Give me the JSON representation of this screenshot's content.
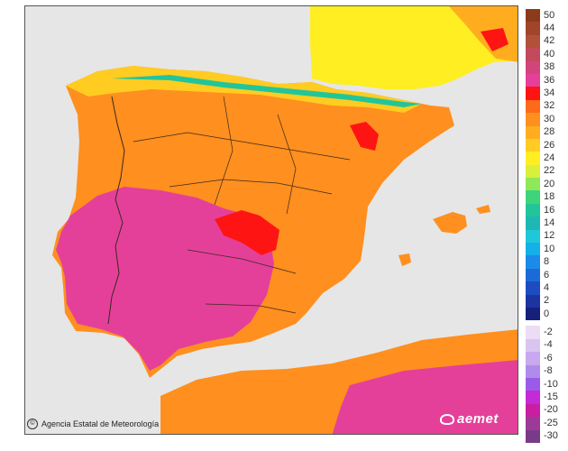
{
  "credit": {
    "text": "Agencia Estatal de Meteorología",
    "icon": "copyright-icon"
  },
  "brand": {
    "text": "aemet",
    "icon": "aemet-logo-icon"
  },
  "legend": {
    "positive": [
      {
        "label": "50",
        "color": "#8b3a1a"
      },
      {
        "label": "44",
        "color": "#a0452a"
      },
      {
        "label": "42",
        "color": "#b3503c"
      },
      {
        "label": "40",
        "color": "#c24a5c"
      },
      {
        "label": "38",
        "color": "#d2457a"
      },
      {
        "label": "36",
        "color": "#e4409a"
      },
      {
        "label": "34",
        "color": "#ff1414"
      },
      {
        "label": "32",
        "color": "#ff6a1a"
      },
      {
        "label": "30",
        "color": "#ff8f1f"
      },
      {
        "label": "28",
        "color": "#ffad1f"
      },
      {
        "label": "26",
        "color": "#ffcc22"
      },
      {
        "label": "24",
        "color": "#ffee22"
      },
      {
        "label": "22",
        "color": "#d8f03a"
      },
      {
        "label": "20",
        "color": "#8ee85a"
      },
      {
        "label": "18",
        "color": "#3ed47a"
      },
      {
        "label": "16",
        "color": "#22c59a"
      },
      {
        "label": "14",
        "color": "#1fb7b4"
      },
      {
        "label": "12",
        "color": "#1fc8d8"
      },
      {
        "label": "10",
        "color": "#14b0e8"
      },
      {
        "label": "8",
        "color": "#1a8ce8"
      },
      {
        "label": "6",
        "color": "#1c6ad8"
      },
      {
        "label": "4",
        "color": "#1c4cc0"
      },
      {
        "label": "2",
        "color": "#1c34a0"
      },
      {
        "label": "0",
        "color": "#16207a"
      }
    ],
    "negative": [
      {
        "label": "-2",
        "color": "#ecdcf4"
      },
      {
        "label": "-4",
        "color": "#dcc4f0"
      },
      {
        "label": "-6",
        "color": "#c8a8ee"
      },
      {
        "label": "-8",
        "color": "#b08cea"
      },
      {
        "label": "-10",
        "color": "#9a5ce8"
      },
      {
        "label": "-15",
        "color": "#c42ad8"
      },
      {
        "label": "-20",
        "color": "#c81ea0"
      },
      {
        "label": "-25",
        "color": "#9c3a98"
      },
      {
        "label": "-30",
        "color": "#7a3a8a"
      }
    ]
  },
  "map": {
    "sea_color": "#e6e6e6",
    "palette": {
      "peak": "#ff1414",
      "hot": "#e4409a",
      "warm": "#ff8f1f",
      "mild": "#ffad1f",
      "cool": "#ffcc22",
      "cooler": "#ffee22",
      "border": "#3b2a1a"
    }
  }
}
